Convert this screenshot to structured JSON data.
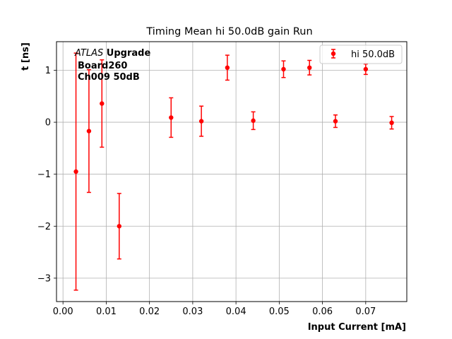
{
  "chart_data": {
    "type": "scatter",
    "title": "Timing Mean hi 50.0dB gain Run",
    "xlabel": "Input Current [mA]",
    "ylabel": "t [ns]",
    "xlim": [
      -0.0015,
      0.0795
    ],
    "ylim": [
      -3.45,
      1.55
    ],
    "xticks": [
      0.0,
      0.01,
      0.02,
      0.03,
      0.04,
      0.05,
      0.06,
      0.07
    ],
    "xtick_labels": [
      "0.00",
      "0.01",
      "0.02",
      "0.03",
      "0.04",
      "0.05",
      "0.06",
      "0.07"
    ],
    "yticks": [
      -3,
      -2,
      -1,
      0,
      1
    ],
    "ytick_labels": [
      "−3",
      "−2",
      "−1",
      "0",
      "1"
    ],
    "grid": true,
    "legend_position": "top-right",
    "annotation": {
      "italic": "ATLAS",
      "line1_rest": " Upgrade",
      "line2": "Board260",
      "line3": "Ch009 50dB"
    },
    "series": [
      {
        "name": "hi 50.0dB",
        "color": "#ff0000",
        "marker": "circle",
        "x": [
          0.003,
          0.006,
          0.009,
          0.013,
          0.025,
          0.032,
          0.038,
          0.044,
          0.051,
          0.057,
          0.063,
          0.07,
          0.076
        ],
        "y": [
          -0.95,
          -0.17,
          0.36,
          -2.0,
          0.09,
          0.02,
          1.05,
          0.03,
          1.02,
          1.05,
          0.02,
          1.02,
          -0.01
        ],
        "err": [
          2.28,
          1.18,
          0.84,
          0.63,
          0.38,
          0.29,
          0.24,
          0.17,
          0.16,
          0.14,
          0.12,
          0.1,
          0.12
        ]
      }
    ]
  }
}
